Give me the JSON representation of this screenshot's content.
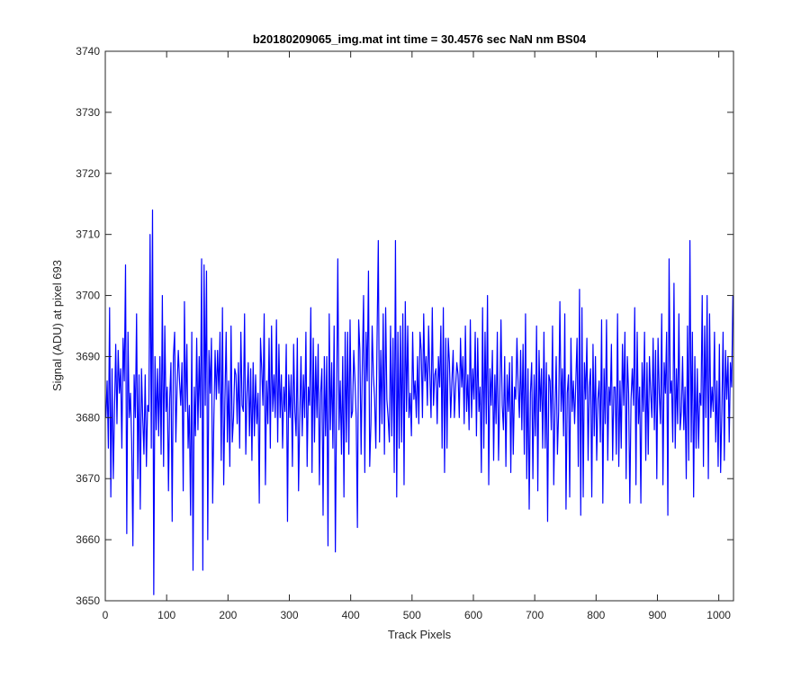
{
  "chart_data": {
    "type": "line",
    "title": "b20180209065_img.mat int time = 30.4576 sec  NaN nm BS04",
    "xlabel": "Track Pixels",
    "ylabel": "Signal (ADU) at pixel 693",
    "xlim": [
      0,
      1024
    ],
    "ylim": [
      3650,
      3740
    ],
    "xticks": [
      0,
      100,
      200,
      300,
      400,
      500,
      600,
      700,
      800,
      900,
      1000
    ],
    "yticks": [
      3650,
      3660,
      3670,
      3680,
      3690,
      3700,
      3710,
      3720,
      3730,
      3740
    ],
    "grid": false,
    "series": [
      {
        "color": "#0000ff",
        "x": [
          1,
          3,
          5,
          7,
          9,
          11,
          13,
          15,
          17,
          19,
          21,
          23,
          25,
          27,
          29,
          31,
          33,
          35,
          37,
          39,
          41,
          43,
          45,
          47,
          49,
          51,
          53,
          55,
          57,
          59,
          61,
          63,
          65,
          67,
          69,
          71,
          73,
          75,
          77,
          79,
          81,
          83,
          85,
          87,
          89,
          91,
          93,
          95,
          97,
          99,
          101,
          103,
          105,
          107,
          109,
          111,
          113,
          115,
          117,
          119,
          121,
          123,
          125,
          127,
          129,
          131,
          133,
          135,
          137,
          139,
          141,
          143,
          145,
          147,
          149,
          151,
          153,
          155,
          157,
          159,
          161,
          163,
          165,
          167,
          169,
          171,
          173,
          175,
          177,
          179,
          181,
          183,
          185,
          187,
          189,
          191,
          193,
          195,
          197,
          199,
          201,
          203,
          205,
          207,
          209,
          211,
          213,
          215,
          217,
          219,
          221,
          223,
          225,
          227,
          229,
          231,
          233,
          235,
          237,
          239,
          241,
          243,
          245,
          247,
          249,
          251,
          253,
          255,
          257,
          259,
          261,
          263,
          265,
          267,
          269,
          271,
          273,
          275,
          277,
          279,
          281,
          283,
          285,
          287,
          289,
          291,
          293,
          295,
          297,
          299,
          301,
          303,
          305,
          307,
          309,
          311,
          313,
          315,
          317,
          319,
          321,
          323,
          325,
          327,
          329,
          331,
          333,
          335,
          337,
          339,
          341,
          343,
          345,
          347,
          349,
          351,
          353,
          355,
          357,
          359,
          361,
          363,
          365,
          367,
          369,
          371,
          373,
          375,
          377,
          379,
          381,
          383,
          385,
          387,
          389,
          391,
          393,
          395,
          397,
          399,
          401,
          403,
          405,
          407,
          409,
          411,
          413,
          415,
          417,
          419,
          421,
          423,
          425,
          427,
          429,
          431,
          433,
          435,
          437,
          439,
          441,
          443,
          445,
          447,
          449,
          451,
          453,
          455,
          457,
          459,
          461,
          463,
          465,
          467,
          469,
          471,
          473,
          475,
          477,
          479,
          481,
          483,
          485,
          487,
          489,
          491,
          493,
          495,
          497,
          499,
          501,
          503,
          505,
          507,
          509,
          511,
          513,
          515,
          517,
          519,
          521,
          523,
          525,
          527,
          529,
          531,
          533,
          535,
          537,
          539,
          541,
          543,
          545,
          547,
          549,
          551,
          553,
          555,
          557,
          559,
          561,
          563,
          565,
          567,
          569,
          571,
          573,
          575,
          577,
          579,
          581,
          583,
          585,
          587,
          589,
          591,
          593,
          595,
          597,
          599,
          601,
          603,
          605,
          607,
          609,
          611,
          613,
          615,
          617,
          619,
          621,
          623,
          625,
          627,
          629,
          631,
          633,
          635,
          637,
          639,
          641,
          643,
          645,
          647,
          649,
          651,
          653,
          655,
          657,
          659,
          661,
          663,
          665,
          667,
          669,
          671,
          673,
          675,
          677,
          679,
          681,
          683,
          685,
          687,
          689,
          691,
          693,
          695,
          697,
          699,
          701,
          703,
          705,
          707,
          709,
          711,
          713,
          715,
          717,
          719,
          721,
          723,
          725,
          727,
          729,
          731,
          733,
          735,
          737,
          739,
          741,
          743,
          745,
          747,
          749,
          751,
          753,
          755,
          757,
          759,
          761,
          763,
          765,
          767,
          769,
          771,
          773,
          775,
          777,
          779,
          781,
          783,
          785,
          787,
          789,
          791,
          793,
          795,
          797,
          799,
          801,
          803,
          805,
          807,
          809,
          811,
          813,
          815,
          817,
          819,
          821,
          823,
          825,
          827,
          829,
          831,
          833,
          835,
          837,
          839,
          841,
          843,
          845,
          847,
          849,
          851,
          853,
          855,
          857,
          859,
          861,
          863,
          865,
          867,
          869,
          871,
          873,
          875,
          877,
          879,
          881,
          883,
          885,
          887,
          889,
          891,
          893,
          895,
          897,
          899,
          901,
          903,
          905,
          907,
          909,
          911,
          913,
          915,
          917,
          919,
          921,
          923,
          925,
          927,
          929,
          931,
          933,
          935,
          937,
          939,
          941,
          943,
          945,
          947,
          949,
          951,
          953,
          955,
          957,
          959,
          961,
          963,
          965,
          967,
          969,
          971,
          973,
          975,
          977,
          979,
          981,
          983,
          985,
          987,
          989,
          991,
          993,
          995,
          997,
          999,
          1001,
          1003,
          1005,
          1007,
          1009,
          1011,
          1013,
          1015,
          1017,
          1019,
          1021,
          1023
        ],
        "y": [
          3680,
          3686,
          3675,
          3698,
          3667,
          3688,
          3670,
          3681,
          3692,
          3679,
          3691,
          3684,
          3688,
          3675,
          3693,
          3686,
          3705,
          3661,
          3694,
          3680,
          3684,
          3676,
          3659,
          3687,
          3680,
          3697,
          3670,
          3687,
          3665,
          3688,
          3680,
          3674,
          3687,
          3672,
          3682,
          3681,
          3710,
          3675,
          3714,
          3651,
          3690,
          3678,
          3688,
          3677,
          3690,
          3674,
          3700,
          3672,
          3695,
          3681,
          3685,
          3668,
          3683,
          3689,
          3663,
          3690,
          3694,
          3676,
          3685,
          3691,
          3686,
          3682,
          3689,
          3668,
          3699,
          3681,
          3692,
          3675,
          3682,
          3664,
          3694,
          3655,
          3685,
          3677,
          3693,
          3678,
          3690,
          3680,
          3706,
          3655,
          3705,
          3682,
          3704,
          3660,
          3691,
          3684,
          3693,
          3666,
          3680,
          3691,
          3683,
          3691,
          3684,
          3694,
          3673,
          3698,
          3669,
          3683,
          3694,
          3676,
          3686,
          3672,
          3695,
          3676,
          3680,
          3688,
          3687,
          3679,
          3689,
          3675,
          3694,
          3682,
          3681,
          3697,
          3674,
          3684,
          3689,
          3677,
          3688,
          3673,
          3689,
          3677,
          3687,
          3679,
          3684,
          3666,
          3693,
          3688,
          3682,
          3697,
          3669,
          3686,
          3679,
          3693,
          3675,
          3695,
          3681,
          3687,
          3680,
          3696,
          3676,
          3692,
          3680,
          3687,
          3675,
          3685,
          3681,
          3692,
          3663,
          3687,
          3680,
          3687,
          3672,
          3692,
          3681,
          3677,
          3693,
          3668,
          3680,
          3690,
          3677,
          3687,
          3680,
          3694,
          3672,
          3685,
          3682,
          3698,
          3671,
          3693,
          3676,
          3690,
          3680,
          3692,
          3669,
          3684,
          3688,
          3664,
          3690,
          3677,
          3690,
          3659,
          3697,
          3678,
          3689,
          3675,
          3695,
          3658,
          3682,
          3706,
          3678,
          3686,
          3674,
          3690,
          3667,
          3694,
          3676,
          3694,
          3674,
          3696,
          3680,
          3681,
          3691,
          3686,
          3680,
          3662,
          3696,
          3691,
          3674,
          3689,
          3700,
          3671,
          3694,
          3686,
          3704,
          3672,
          3679,
          3695,
          3687,
          3683,
          3675,
          3693,
          3709,
          3676,
          3691,
          3679,
          3697,
          3674,
          3698,
          3683,
          3680,
          3676,
          3695,
          3677,
          3693,
          3671,
          3709,
          3667,
          3694,
          3675,
          3695,
          3676,
          3697,
          3669,
          3699,
          3681,
          3695,
          3680,
          3684,
          3677,
          3694,
          3683,
          3686,
          3680,
          3690,
          3679,
          3694,
          3691,
          3680,
          3697,
          3686,
          3690,
          3682,
          3695,
          3687,
          3680,
          3698,
          3682,
          3687,
          3688,
          3679,
          3690,
          3685,
          3695,
          3675,
          3698,
          3671,
          3693,
          3675,
          3693,
          3689,
          3680,
          3686,
          3691,
          3680,
          3685,
          3689,
          3687,
          3680,
          3693,
          3685,
          3690,
          3679,
          3695,
          3681,
          3687,
          3678,
          3696,
          3680,
          3688,
          3683,
          3694,
          3677,
          3693,
          3681,
          3685,
          3671,
          3698,
          3675,
          3694,
          3679,
          3700,
          3669,
          3688,
          3682,
          3691,
          3673,
          3687,
          3679,
          3694,
          3673,
          3683,
          3696,
          3682,
          3678,
          3690,
          3672,
          3687,
          3681,
          3689,
          3671,
          3690,
          3674,
          3685,
          3683,
          3693,
          3685,
          3680,
          3691,
          3678,
          3692,
          3674,
          3697,
          3670,
          3688,
          3665,
          3684,
          3689,
          3670,
          3687,
          3677,
          3695,
          3668,
          3691,
          3681,
          3688,
          3675,
          3694,
          3675,
          3689,
          3663,
          3687,
          3686,
          3678,
          3695,
          3669,
          3681,
          3690,
          3674,
          3681,
          3699,
          3681,
          3688,
          3677,
          3697,
          3665,
          3684,
          3687,
          3667,
          3693,
          3681,
          3686,
          3679,
          3686,
          3693,
          3672,
          3701,
          3664,
          3698,
          3667,
          3689,
          3683,
          3693,
          3673,
          3685,
          3688,
          3667,
          3692,
          3677,
          3690,
          3673,
          3683,
          3686,
          3676,
          3696,
          3666,
          3688,
          3679,
          3696,
          3673,
          3685,
          3682,
          3692,
          3673,
          3685,
          3685,
          3674,
          3697,
          3672,
          3686,
          3675,
          3692,
          3682,
          3694,
          3670,
          3690,
          3684,
          3666,
          3683,
          3688,
          3682,
          3698,
          3669,
          3694,
          3679,
          3685,
          3666,
          3689,
          3681,
          3694,
          3673,
          3689,
          3674,
          3690,
          3684,
          3680,
          3693,
          3678,
          3691,
          3670,
          3693,
          3684,
          3679,
          3697,
          3669,
          3689,
          3684,
          3694,
          3664,
          3706,
          3684,
          3686,
          3676,
          3702,
          3675,
          3688,
          3679,
          3697,
          3678,
          3681,
          3690,
          3678,
          3685,
          3670,
          3695,
          3673,
          3709,
          3676,
          3694,
          3667,
          3690,
          3675,
          3688,
          3675,
          3684,
          3682,
          3700,
          3672,
          3695,
          3680,
          3700,
          3670,
          3697,
          3680,
          3685,
          3681,
          3694,
          3676,
          3686,
          3672,
          3692,
          3671,
          3681,
          3694,
          3673,
          3691,
          3683,
          3690,
          3676,
          3689,
          3685,
          3700
        ]
      }
    ]
  }
}
